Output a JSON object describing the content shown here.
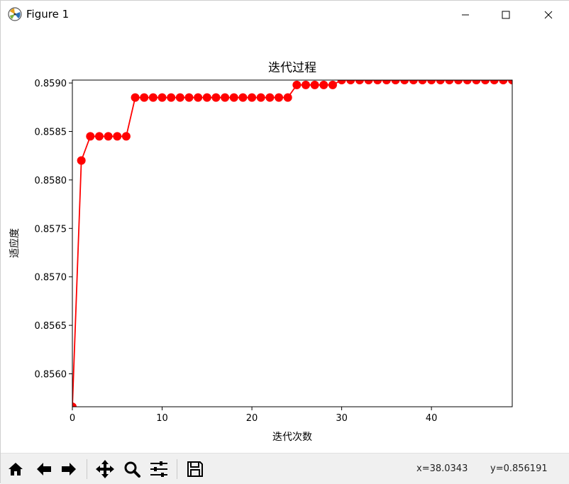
{
  "window": {
    "title": "Figure 1",
    "icon": "matplotlib-icon",
    "controls": [
      "minimize-icon",
      "maximize-icon",
      "close-icon"
    ]
  },
  "toolbar": {
    "buttons": [
      "home-icon",
      "back-icon",
      "forward-icon",
      "pan-icon",
      "zoom-icon",
      "configure-subplots-icon",
      "save-icon"
    ],
    "coords_x": "x=38.0343",
    "coords_y": "y=0.856191"
  },
  "chart_data": {
    "type": "line",
    "title": "迭代过程",
    "xlabel": "迭代次数",
    "ylabel": "适应度",
    "xlim": [
      0,
      49
    ],
    "ylim": [
      0.85566,
      0.85903
    ],
    "xticks": [
      0,
      10,
      20,
      30,
      40
    ],
    "xtick_labels": [
      "0",
      "10",
      "20",
      "30",
      "40"
    ],
    "yticks": [
      0.856,
      0.8565,
      0.857,
      0.8575,
      0.858,
      0.8585,
      0.859
    ],
    "ytick_labels": [
      "0.8560",
      "0.8565",
      "0.8570",
      "0.8575",
      "0.8580",
      "0.8585",
      "0.8590"
    ],
    "color": "#ff0000",
    "marker": "circle",
    "grid": false,
    "series": [
      {
        "x": [
          0,
          1,
          2,
          3,
          4,
          5,
          6,
          7,
          8,
          9,
          10,
          11,
          12,
          13,
          14,
          15,
          16,
          17,
          18,
          19,
          20,
          21,
          22,
          23,
          24,
          25,
          26,
          27,
          28,
          29,
          30,
          31,
          32,
          33,
          34,
          35,
          36,
          37,
          38,
          39,
          40,
          41,
          42,
          43,
          44,
          45,
          46,
          47,
          48,
          49
        ],
        "values": [
          0.85566,
          0.8582,
          0.85845,
          0.85845,
          0.85845,
          0.85845,
          0.85845,
          0.85885,
          0.85885,
          0.85885,
          0.85885,
          0.85885,
          0.85885,
          0.85885,
          0.85885,
          0.85885,
          0.85885,
          0.85885,
          0.85885,
          0.85885,
          0.85885,
          0.85885,
          0.85885,
          0.85885,
          0.85885,
          0.85898,
          0.85898,
          0.85898,
          0.85898,
          0.85898,
          0.85903,
          0.85903,
          0.85903,
          0.85903,
          0.85903,
          0.85903,
          0.85903,
          0.85903,
          0.85903,
          0.85903,
          0.85903,
          0.85903,
          0.85903,
          0.85903,
          0.85903,
          0.85903,
          0.85903,
          0.85903,
          0.85903,
          0.85903
        ]
      }
    ]
  }
}
